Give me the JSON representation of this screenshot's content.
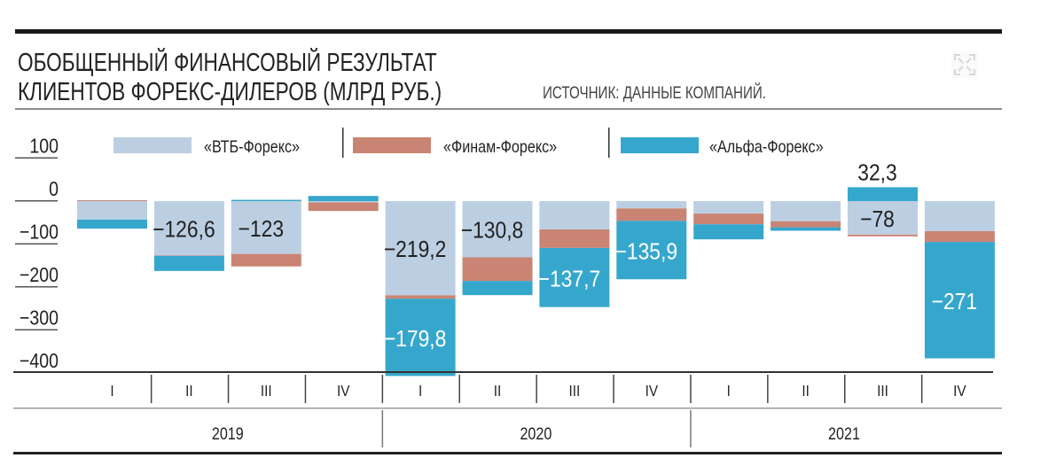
{
  "header": {
    "title_line1": "ОБОБЩЕННЫЙ ФИНАНСОВЫЙ РЕЗУЛЬТАТ",
    "title_line2": "КЛИЕНТОВ ФОРЕКС-ДИЛЕРОВ (МЛРД РУБ.)",
    "source": "ИСТОЧНИК: ДАННЫЕ КОМПАНИЙ.",
    "icon": "expand-icon"
  },
  "chart_data": {
    "type": "bar",
    "stacked": true,
    "title": "Обобщенный финансовый результат клиентов форекс-дилеров (млрд руб.)",
    "ylabel": "млрд руб.",
    "ylim": [
      -400,
      100
    ],
    "yticks": [
      100,
      0,
      -100,
      -200,
      -300,
      -400
    ],
    "ytick_labels": [
      "100",
      "0",
      "−100",
      "−200",
      "−300",
      "−400"
    ],
    "categories": [
      "I",
      "II",
      "III",
      "IV",
      "I",
      "II",
      "III",
      "IV",
      "I",
      "II",
      "III",
      "IV"
    ],
    "years": [
      "2019",
      "2020",
      "2021"
    ],
    "legend_position": "top",
    "series": [
      {
        "name": "«ВТБ-Форекс»",
        "color": "#bccfe2",
        "values": [
          -43,
          -126.6,
          -123,
          -3,
          -219.2,
          -130.8,
          -66,
          -17,
          -29,
          -47,
          -78,
          -70
        ]
      },
      {
        "name": "«Финам-Форекс»",
        "color": "#c98473",
        "values": [
          2,
          -1,
          -29,
          -20,
          -8,
          -55,
          -43,
          -29,
          -25,
          -14,
          -4,
          -25
        ]
      },
      {
        "name": "«Альфа-Форекс»",
        "color": "#36a7cc",
        "values": [
          -21,
          -35,
          3,
          12,
          -179.8,
          -33,
          -137.7,
          -135.9,
          -35,
          -8,
          32.3,
          -271
        ]
      }
    ],
    "data_labels": [
      {
        "series": 0,
        "index": 1,
        "text": "−126,6",
        "color": "#222"
      },
      {
        "series": 0,
        "index": 2,
        "text": "−123",
        "color": "#222"
      },
      {
        "series": 0,
        "index": 4,
        "text": "−219,2",
        "color": "#222"
      },
      {
        "series": 2,
        "index": 4,
        "text": "−179,8",
        "color": "#fff"
      },
      {
        "series": 0,
        "index": 5,
        "text": "−130,8",
        "color": "#222"
      },
      {
        "series": 2,
        "index": 6,
        "text": "−137,7",
        "color": "#fff"
      },
      {
        "series": 2,
        "index": 7,
        "text": "−135,9",
        "color": "#fff"
      },
      {
        "series": 0,
        "index": 10,
        "text": "−78",
        "color": "#222"
      },
      {
        "series": 2,
        "index": 10,
        "text": "32,3",
        "color": "#222",
        "above": true
      },
      {
        "series": 2,
        "index": 11,
        "text": "−271",
        "color": "#fff"
      }
    ]
  }
}
